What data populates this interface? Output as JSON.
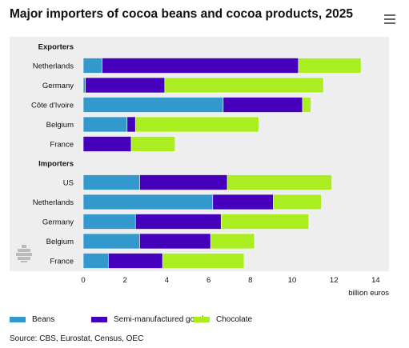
{
  "title": "Major importers of cocoa beans and cocoa products, 2025",
  "source": "Source: CBS, Eurostat, Census, OEC",
  "colors": {
    "beans": "#3399cc",
    "semi": "#4400bb",
    "chocolate": "#aaee22",
    "group_bg": "#eeeeee"
  },
  "icons": {
    "menu": "hamburger-menu-icon",
    "logo": "cbs-logo-icon"
  },
  "chart_data": {
    "type": "bar",
    "orientation": "horizontal",
    "stacked": true,
    "title": "Major importers of cocoa beans and cocoa products, 2025",
    "xlabel": "billion euros",
    "xlim": [
      0,
      14
    ],
    "xticks": [
      0,
      2,
      4,
      6,
      8,
      10,
      12,
      14
    ],
    "grid": false,
    "legend_position": "bottom-left",
    "groups": [
      "Exporters",
      "Importers"
    ],
    "categories": [
      "Netherlands",
      "Germany",
      "Côte d'Ivoire",
      "Belgium",
      "France",
      "US",
      "Netherlands",
      "Germany",
      "Belgium",
      "France"
    ],
    "category_groups": [
      "Exporters",
      "Exporters",
      "Exporters",
      "Exporters",
      "Exporters",
      "Importers",
      "Importers",
      "Importers",
      "Importers",
      "Importers"
    ],
    "series": [
      {
        "name": "Beans",
        "color": "#3399cc",
        "values": [
          0.9,
          0.1,
          6.7,
          2.1,
          0.0,
          2.7,
          6.2,
          2.5,
          2.7,
          1.2
        ]
      },
      {
        "name": "Semi-manufactured goods",
        "color": "#4400bb",
        "values": [
          9.4,
          3.8,
          3.8,
          0.4,
          2.3,
          4.2,
          2.9,
          4.1,
          3.4,
          2.6
        ]
      },
      {
        "name": "Chocolate",
        "color": "#aaee22",
        "values": [
          3.0,
          7.6,
          0.4,
          5.9,
          2.1,
          5.0,
          2.3,
          4.2,
          2.1,
          3.9
        ]
      }
    ]
  }
}
